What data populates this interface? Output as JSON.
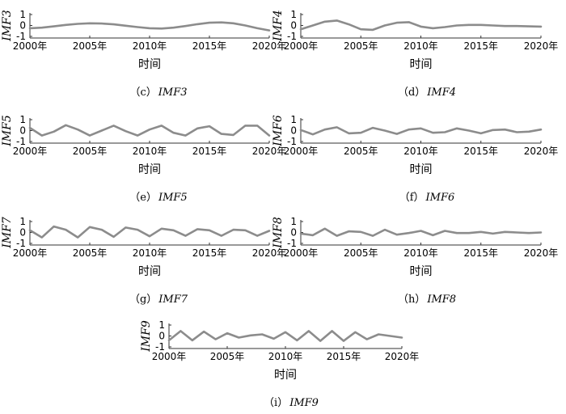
{
  "chart_data": [
    {
      "type": "line",
      "ylabel": "IMF3",
      "xlabel": "时间",
      "caption_prefix": "（c）",
      "caption_name": "IMF3",
      "xticks": [
        "2000年",
        "2005年",
        "2010年",
        "2015年",
        "2020年"
      ],
      "yticks": [
        "1",
        "0",
        "-1"
      ],
      "ylim": [
        -1,
        1
      ],
      "xlim": [
        2000,
        2020
      ],
      "x": [
        2000,
        2001,
        2002,
        2003,
        2004,
        2005,
        2006,
        2007,
        2008,
        2009,
        2010,
        2011,
        2012,
        2013,
        2014,
        2015,
        2016,
        2017,
        2018,
        2019,
        2020
      ],
      "values": [
        -0.25,
        -0.2,
        -0.08,
        0.05,
        0.15,
        0.2,
        0.18,
        0.1,
        -0.02,
        -0.15,
        -0.25,
        -0.28,
        -0.2,
        -0.05,
        0.12,
        0.25,
        0.28,
        0.2,
        0.0,
        -0.25,
        -0.45
      ]
    },
    {
      "type": "line",
      "ylabel": "IMF4",
      "xlabel": "时间",
      "caption_prefix": "（d）",
      "caption_name": "IMF4",
      "xticks": [
        "2000年",
        "2005年",
        "2010年",
        "2015年",
        "2020年"
      ],
      "yticks": [
        "1",
        "0",
        "-1"
      ],
      "ylim": [
        -1,
        1
      ],
      "xlim": [
        2000,
        2020
      ],
      "x": [
        2000,
        2001,
        2002,
        2003,
        2004,
        2005,
        2006,
        2007,
        2008,
        2009,
        2010,
        2011,
        2012,
        2013,
        2014,
        2015,
        2016,
        2017,
        2018,
        2019,
        2020
      ],
      "values": [
        -0.35,
        0.0,
        0.35,
        0.45,
        0.1,
        -0.35,
        -0.4,
        0.0,
        0.25,
        0.3,
        -0.1,
        -0.25,
        -0.15,
        0.0,
        0.05,
        0.05,
        0.0,
        -0.05,
        -0.05,
        -0.08,
        -0.1
      ]
    },
    {
      "type": "line",
      "ylabel": "IMF5",
      "xlabel": "时间",
      "caption_prefix": "（e）",
      "caption_name": "IMF5",
      "xticks": [
        "2000年",
        "2005年",
        "2010年",
        "2015年",
        "2020年"
      ],
      "yticks": [
        "1",
        "0",
        "-1"
      ],
      "ylim": [
        -1,
        1
      ],
      "xlim": [
        2000,
        2020
      ],
      "x": [
        2000,
        2001,
        2002,
        2003,
        2004,
        2005,
        2006,
        2007,
        2008,
        2009,
        2010,
        2011,
        2012,
        2013,
        2014,
        2015,
        2016,
        2017,
        2018,
        2019,
        2020
      ],
      "values": [
        0.25,
        -0.45,
        -0.1,
        0.5,
        0.1,
        -0.45,
        0.0,
        0.45,
        -0.05,
        -0.45,
        0.1,
        0.45,
        -0.2,
        -0.45,
        0.2,
        0.4,
        -0.3,
        -0.4,
        0.45,
        0.45,
        -0.45
      ]
    },
    {
      "type": "line",
      "ylabel": "IMF6",
      "xlabel": "时间",
      "caption_prefix": "（f）",
      "caption_name": "IMF6",
      "xticks": [
        "2000年",
        "2005年",
        "2010年",
        "2015年",
        "2020年"
      ],
      "yticks": [
        "1",
        "0",
        "-1"
      ],
      "ylim": [
        -1,
        1
      ],
      "xlim": [
        2000,
        2020
      ],
      "x": [
        2000,
        2001,
        2002,
        2003,
        2004,
        2005,
        2006,
        2007,
        2008,
        2009,
        2010,
        2011,
        2012,
        2013,
        2014,
        2015,
        2016,
        2017,
        2018,
        2019,
        2020
      ],
      "values": [
        0.05,
        -0.35,
        0.1,
        0.3,
        -0.25,
        -0.2,
        0.25,
        0.0,
        -0.3,
        0.1,
        0.2,
        -0.2,
        -0.15,
        0.2,
        0.0,
        -0.25,
        0.05,
        0.1,
        -0.15,
        -0.1,
        0.1
      ]
    },
    {
      "type": "line",
      "ylabel": "IMF7",
      "xlabel": "时间",
      "caption_prefix": "（g）",
      "caption_name": "IMF7",
      "xticks": [
        "2000年",
        "2005年",
        "2010年",
        "2015年",
        "2020年"
      ],
      "yticks": [
        "1",
        "0",
        "-1"
      ],
      "ylim": [
        -1,
        1
      ],
      "xlim": [
        2000,
        2020
      ],
      "x": [
        2000,
        2001,
        2002,
        2003,
        2004,
        2005,
        2006,
        2007,
        2008,
        2009,
        2010,
        2011,
        2012,
        2013,
        2014,
        2015,
        2016,
        2017,
        2018,
        2019,
        2020
      ],
      "values": [
        0.2,
        -0.45,
        0.55,
        0.25,
        -0.45,
        0.5,
        0.25,
        -0.4,
        0.45,
        0.25,
        -0.35,
        0.35,
        0.2,
        -0.3,
        0.3,
        0.2,
        -0.3,
        0.25,
        0.2,
        -0.3,
        0.15
      ]
    },
    {
      "type": "line",
      "ylabel": "IMF8",
      "xlabel": "时间",
      "caption_prefix": "（h）",
      "caption_name": "IMF8",
      "xticks": [
        "2000年",
        "2005年",
        "2010年",
        "2015年",
        "2020年"
      ],
      "yticks": [
        "1",
        "0",
        "-1"
      ],
      "ylim": [
        -1,
        1
      ],
      "xlim": [
        2000,
        2020
      ],
      "x": [
        2000,
        2001,
        2002,
        2003,
        2004,
        2005,
        2006,
        2007,
        2008,
        2009,
        2010,
        2011,
        2012,
        2013,
        2014,
        2015,
        2016,
        2017,
        2018,
        2019,
        2020
      ],
      "values": [
        -0.1,
        -0.25,
        0.35,
        -0.3,
        0.1,
        0.05,
        -0.3,
        0.25,
        -0.2,
        -0.05,
        0.15,
        -0.25,
        0.15,
        -0.05,
        -0.05,
        0.05,
        -0.1,
        0.05,
        0.0,
        -0.05,
        0.0
      ]
    },
    {
      "type": "line",
      "ylabel": "IMF9",
      "xlabel": "时间",
      "caption_prefix": "（i）",
      "caption_name": "IMF9",
      "xticks": [
        "2000年",
        "2005年",
        "2010年",
        "2015年",
        "2020年"
      ],
      "yticks": [
        "1",
        "0",
        "-1"
      ],
      "ylim": [
        -1,
        1
      ],
      "xlim": [
        2000,
        2020
      ],
      "x": [
        2000,
        2001,
        2002,
        2003,
        2004,
        2005,
        2006,
        2007,
        2008,
        2009,
        2010,
        2011,
        2012,
        2013,
        2014,
        2015,
        2016,
        2017,
        2018,
        2019,
        2020
      ],
      "values": [
        -0.4,
        0.45,
        -0.4,
        0.4,
        -0.3,
        0.25,
        -0.15,
        0.05,
        0.15,
        -0.25,
        0.35,
        -0.4,
        0.45,
        -0.45,
        0.45,
        -0.45,
        0.35,
        -0.3,
        0.15,
        0.0,
        -0.15
      ]
    }
  ]
}
